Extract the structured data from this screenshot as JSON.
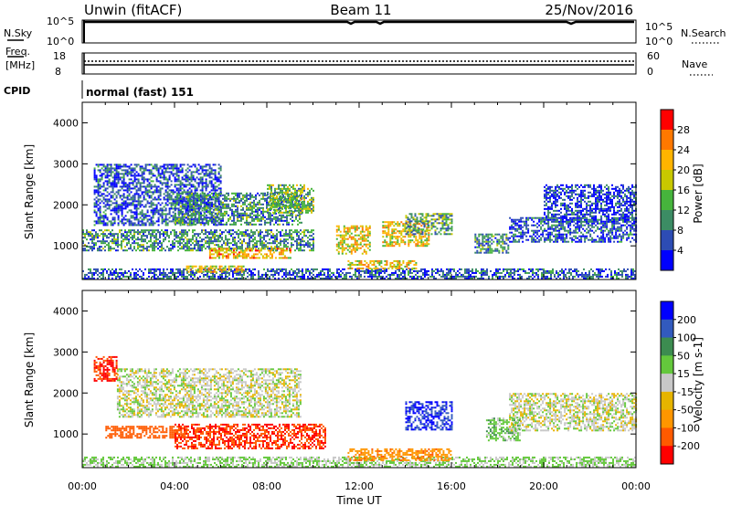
{
  "header": {
    "station": "Unwin (fitACF)",
    "beam": "Beam 11",
    "date": "25/Nov/2016"
  },
  "top_panels": {
    "nsky": {
      "left_label": "N.Sky",
      "right_label": "N.Search",
      "left_ticks": [
        "10^5",
        "10^0"
      ],
      "right_ticks": [
        "10^5",
        "10^0"
      ]
    },
    "freq": {
      "left_label_1": "Freq.",
      "left_label_2": "[MHz]",
      "left_ticks": [
        "18",
        "8"
      ],
      "right_label": "Nave",
      "right_ticks": [
        "60",
        "0"
      ]
    },
    "cpid": {
      "label": "CPID",
      "value": "normal (fast) 151"
    }
  },
  "colors": {
    "power_scale": [
      "#0000ff",
      "#2d4cb4",
      "#3c8c64",
      "#46b43c",
      "#c8c800",
      "#ffb400",
      "#ff7800",
      "#ff0000"
    ],
    "velocity_scale": [
      "#ff0000",
      "#ff5a00",
      "#ff9600",
      "#e6b400",
      "#c8c8c8",
      "#64c83c",
      "#3c8c50",
      "#325abe",
      "#0000ff"
    ]
  },
  "chart_data": [
    {
      "type": "heatmap",
      "name": "power",
      "xlabel": "Time UT",
      "ylabel": "Slant Range [km]",
      "x_ticks": [
        "00:00",
        "04:00",
        "08:00",
        "12:00",
        "16:00",
        "20:00",
        "00:00"
      ],
      "y_ticks": [
        1000,
        2000,
        3000,
        4000
      ],
      "ylim": [
        180,
        4500
      ],
      "colorbar": {
        "label": "Power [dB]",
        "ticks": [
          4,
          8,
          12,
          16,
          20,
          24,
          28
        ],
        "range": [
          0,
          32
        ]
      },
      "features": [
        {
          "start_h": 0.0,
          "end_h": 24.0,
          "min_km": 200,
          "max_km": 450,
          "value": 6
        },
        {
          "start_h": 4.5,
          "end_h": 7.0,
          "min_km": 380,
          "max_km": 520,
          "value": 20
        },
        {
          "start_h": 0.0,
          "end_h": 10.0,
          "min_km": 900,
          "max_km": 1400,
          "value": 10
        },
        {
          "start_h": 5.5,
          "end_h": 9.0,
          "min_km": 700,
          "max_km": 950,
          "value": 22
        },
        {
          "start_h": 0.5,
          "end_h": 6.0,
          "min_km": 1500,
          "max_km": 3000,
          "value": 6
        },
        {
          "start_h": 4.0,
          "end_h": 9.5,
          "min_km": 1500,
          "max_km": 2300,
          "value": 10
        },
        {
          "start_h": 8.0,
          "end_h": 10.0,
          "min_km": 1800,
          "max_km": 2500,
          "value": 14
        },
        {
          "start_h": 11.0,
          "end_h": 12.5,
          "min_km": 800,
          "max_km": 1500,
          "value": 20
        },
        {
          "start_h": 11.5,
          "end_h": 14.5,
          "min_km": 450,
          "max_km": 650,
          "value": 20
        },
        {
          "start_h": 13.0,
          "end_h": 15.0,
          "min_km": 1000,
          "max_km": 1600,
          "value": 20
        },
        {
          "start_h": 14.0,
          "end_h": 16.0,
          "min_km": 1300,
          "max_km": 1800,
          "value": 12
        },
        {
          "start_h": 17.0,
          "end_h": 18.5,
          "min_km": 850,
          "max_km": 1300,
          "value": 10
        },
        {
          "start_h": 18.5,
          "end_h": 24.0,
          "min_km": 1100,
          "max_km": 1700,
          "value": 6
        },
        {
          "start_h": 20.0,
          "end_h": 24.0,
          "min_km": 1600,
          "max_km": 2500,
          "value": 5
        }
      ]
    },
    {
      "type": "heatmap",
      "name": "velocity",
      "xlabel": "Time UT",
      "ylabel": "Slant Range [km]",
      "x_ticks": [
        "00:00",
        "04:00",
        "08:00",
        "12:00",
        "16:00",
        "20:00",
        "00:00"
      ],
      "y_ticks": [
        1000,
        2000,
        3000,
        4000
      ],
      "ylim": [
        180,
        4500
      ],
      "colorbar": {
        "label": "Velocity [m s-1]",
        "ticks": [
          -200,
          -100,
          -50,
          -15,
          15,
          50,
          100,
          200
        ]
      },
      "features": [
        {
          "start_h": 0.0,
          "end_h": 24.0,
          "min_km": 200,
          "max_km": 450,
          "value": 20
        },
        {
          "start_h": 4.0,
          "end_h": 10.5,
          "min_km": 650,
          "max_km": 1250,
          "value": -200
        },
        {
          "start_h": 1.0,
          "end_h": 4.5,
          "min_km": 900,
          "max_km": 1200,
          "value": -150
        },
        {
          "start_h": 1.5,
          "end_h": 9.5,
          "min_km": 1400,
          "max_km": 2600,
          "value": 0
        },
        {
          "start_h": 0.5,
          "end_h": 1.5,
          "min_km": 2300,
          "max_km": 2900,
          "value": -200
        },
        {
          "start_h": 11.5,
          "end_h": 16.0,
          "min_km": 350,
          "max_km": 650,
          "value": -80
        },
        {
          "start_h": 14.0,
          "end_h": 16.0,
          "min_km": 1100,
          "max_km": 1800,
          "value": 200
        },
        {
          "start_h": 17.5,
          "end_h": 19.0,
          "min_km": 850,
          "max_km": 1400,
          "value": 30
        },
        {
          "start_h": 18.5,
          "end_h": 24.0,
          "min_km": 1100,
          "max_km": 2000,
          "value": 0
        }
      ]
    }
  ]
}
